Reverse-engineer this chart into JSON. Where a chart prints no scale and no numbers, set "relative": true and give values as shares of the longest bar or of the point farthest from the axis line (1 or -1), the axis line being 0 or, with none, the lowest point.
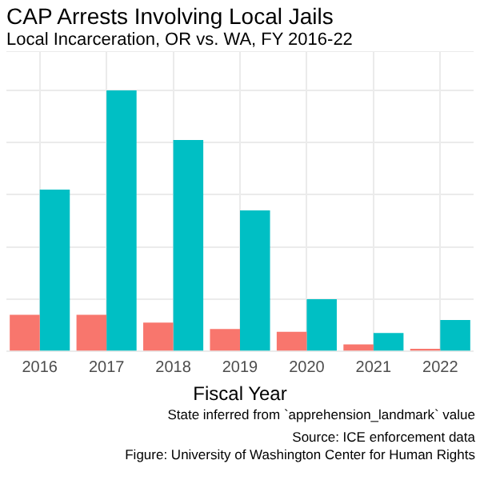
{
  "chart_data": {
    "type": "bar",
    "title": "CAP Arrests Involving Local Jails",
    "subtitle": "Local Incarceration, OR vs. WA, FY 2016-22",
    "xlabel": "Fiscal Year",
    "categories": [
      "2016",
      "2017",
      "2018",
      "2019",
      "2020",
      "2021",
      "2022"
    ],
    "series": [
      {
        "color": "#f8766d",
        "values": [
          0.14,
          0.14,
          0.11,
          0.086,
          0.075,
          0.027,
          0.01
        ]
      },
      {
        "color": "#00bfc4",
        "values": [
          0.62,
          1,
          0.81,
          0.54,
          0.2,
          0.07,
          0.12
        ]
      }
    ],
    "relative": true,
    "grid": true,
    "legend": false,
    "annotations": [
      "State inferred from `apprehension_landmark` value",
      "Source: ICE enforcement data",
      "Figure: University of Washington Center for Human Rights"
    ]
  }
}
